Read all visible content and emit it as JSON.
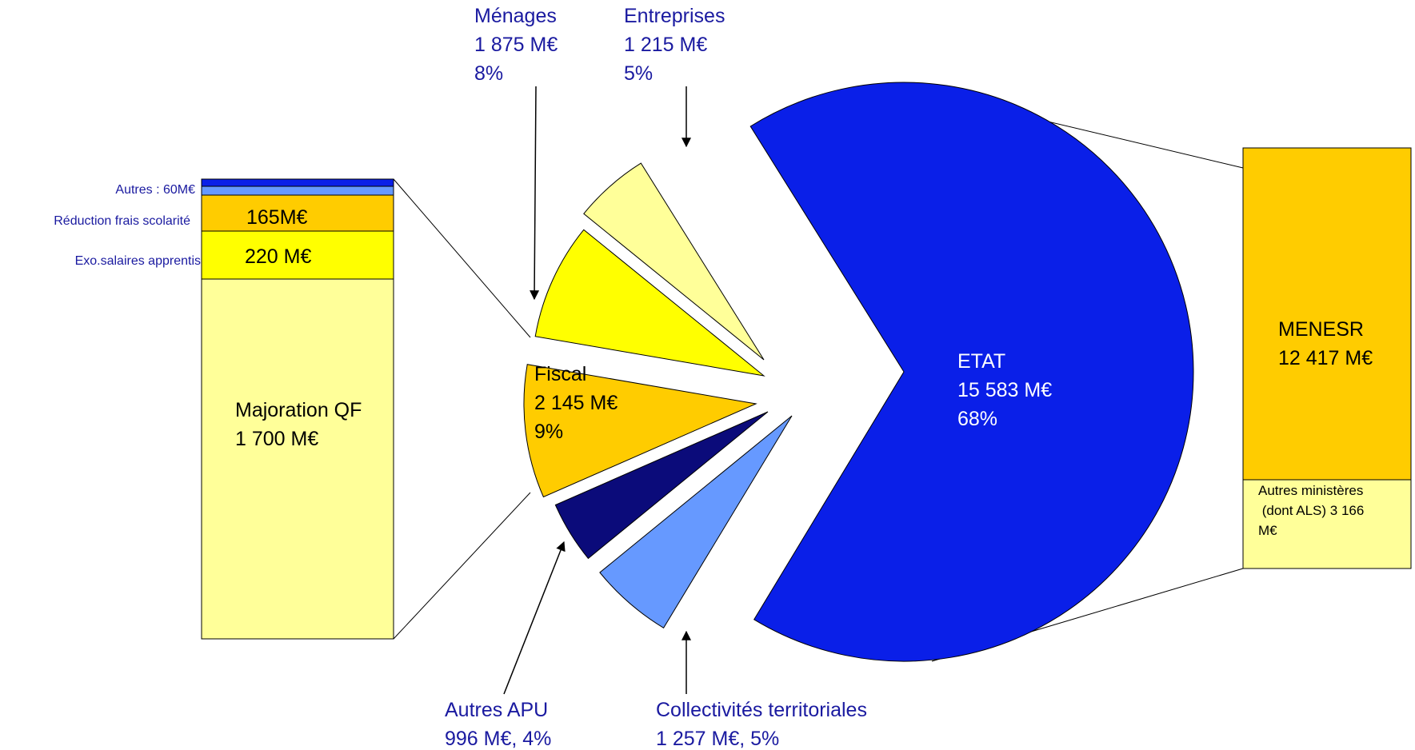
{
  "chart_data": [
    {
      "type": "pie",
      "unit": "M€",
      "slices": [
        {
          "name": "ETAT",
          "value": 15583,
          "value_label": "15 583 M€",
          "percent_label": "68%",
          "color": "#0a1fe8",
          "label_color": "#ffffff"
        },
        {
          "name": "Collectivités territoriales",
          "value": 1257,
          "value_label": "1 257 M€, 5%",
          "color": "#6699ff"
        },
        {
          "name": "Autres APU",
          "value": 996,
          "value_label": "996 M€, 4%",
          "color": "#0b0b7a"
        },
        {
          "name": "Fiscal",
          "value": 2145,
          "value_label": "2 145 M€",
          "percent_label": "9%",
          "color": "#ffcc00"
        },
        {
          "name": "Ménages",
          "value": 1875,
          "value_label": "1 875 M€",
          "percent_label": "8%",
          "color": "#ffff00"
        },
        {
          "name": "Entreprises",
          "value": 1215,
          "value_label": "1 215 M€",
          "percent_label": "5%",
          "color": "#ffff99"
        }
      ]
    },
    {
      "type": "bar",
      "stacked": true,
      "title": "Fiscal",
      "segments": [
        {
          "name": "Majoration QF",
          "value": 1700,
          "value_label": "1 700 M€",
          "color": "#ffff99"
        },
        {
          "name": "Exo.salaires apprentis",
          "value": 220,
          "value_label": "220 M€",
          "color": "#ffff00"
        },
        {
          "name": "Réduction frais scolarité",
          "value": 165,
          "value_label": "165M€",
          "color": "#ffcc00"
        },
        {
          "name": "Autres : 60M€",
          "value": 60,
          "colors": [
            "#6699ff",
            "#0a1fe8"
          ]
        }
      ]
    },
    {
      "type": "bar",
      "stacked": true,
      "title": "ETAT",
      "segments": [
        {
          "name": "MENESR",
          "value": 12417,
          "value_label": "12 417 M€",
          "color": "#ffcc00"
        },
        {
          "name": "Autres ministères (dont ALS)",
          "value": 3166,
          "text_lines": [
            "Autres ministères",
            " (dont ALS) 3 166",
            "M€"
          ],
          "color": "#ffff99"
        }
      ]
    }
  ]
}
